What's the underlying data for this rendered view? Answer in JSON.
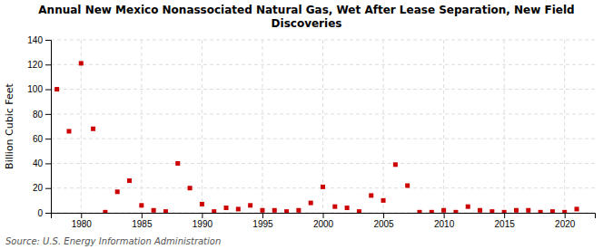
{
  "chart_data": {
    "type": "scatter",
    "title": "Annual New Mexico Nonassociated Natural Gas, Wet After Lease Separation, New Field\nDiscoveries",
    "ylabel": "Billion Cubic Feet",
    "annotations": [
      "Source: U.S. Energy Information Administration"
    ],
    "x": [
      1978,
      1979,
      1980,
      1981,
      1982,
      1983,
      1984,
      1985,
      1986,
      1987,
      1988,
      1989,
      1990,
      1991,
      1992,
      1993,
      1994,
      1995,
      1996,
      1997,
      1998,
      1999,
      2000,
      2001,
      2002,
      2003,
      2004,
      2005,
      2006,
      2007,
      2008,
      2009,
      2010,
      2011,
      2012,
      2013,
      2014,
      2015,
      2016,
      2017,
      2018,
      2019,
      2020,
      2021
    ],
    "values": [
      100,
      66,
      121,
      68,
      0.5,
      17,
      26,
      6,
      2,
      1,
      40,
      20,
      7,
      1,
      4,
      3,
      6,
      2,
      2,
      1,
      2,
      8,
      21,
      5,
      4,
      1,
      14,
      10,
      39,
      22,
      0.5,
      0.5,
      2,
      0.5,
      5,
      2,
      1,
      0.5,
      2,
      2,
      0.5,
      1,
      0.5,
      3
    ],
    "color": "#cc0000",
    "marker": "square",
    "xlim": [
      1977.5,
      2022.5
    ],
    "ylim": [
      0,
      140
    ],
    "xticks": [
      1980,
      1985,
      1990,
      1995,
      2000,
      2005,
      2010,
      2015,
      2020
    ],
    "yticks": [
      0,
      20,
      40,
      60,
      80,
      100,
      120,
      140
    ],
    "grid": true
  }
}
